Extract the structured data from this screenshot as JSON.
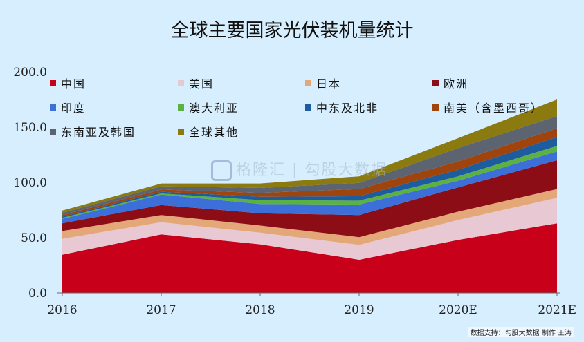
{
  "title": "全球主要国家光伏装机量统计",
  "watermark": "格隆汇 | 勾股大数据",
  "source": "数据支持：勾股大数据  制作 王涛",
  "chart_data": {
    "type": "area",
    "stacked": true,
    "title": "全球主要国家光伏装机量统计",
    "xlabel": "",
    "ylabel": "",
    "x": [
      "2016",
      "2017",
      "2018",
      "2019",
      "2020E",
      "2021E"
    ],
    "ylim": [
      0,
      200
    ],
    "yticks": [
      "0.0",
      "50.0",
      "100.0",
      "150.0",
      "200.0"
    ],
    "grid": false,
    "legend_position": "top-inside",
    "series": [
      {
        "name": "中国",
        "color": "#c8001a",
        "values": [
          34.5,
          53.0,
          44.0,
          30.0,
          48.0,
          63.0
        ]
      },
      {
        "name": "美国",
        "color": "#e8c8d2",
        "values": [
          14.5,
          11.0,
          10.5,
          13.5,
          18.0,
          23.0
        ]
      },
      {
        "name": "日本",
        "color": "#e4a878",
        "values": [
          7.0,
          6.5,
          6.5,
          7.0,
          7.5,
          8.0
        ]
      },
      {
        "name": "欧洲",
        "color": "#8c0d16",
        "values": [
          7.0,
          9.0,
          11.0,
          20.0,
          22.0,
          26.0
        ]
      },
      {
        "name": "印度",
        "color": "#3d6fd8",
        "values": [
          4.0,
          9.5,
          8.5,
          9.5,
          6.0,
          8.0
        ]
      },
      {
        "name": "澳大利亚",
        "color": "#5bb243",
        "values": [
          1.0,
          1.0,
          3.5,
          3.5,
          4.0,
          5.0
        ]
      },
      {
        "name": "中东及北非",
        "color": "#1d5c9e",
        "values": [
          1.0,
          1.5,
          3.0,
          4.0,
          6.0,
          8.0
        ]
      },
      {
        "name": "南美（含墨西哥）",
        "color": "#a0440e",
        "values": [
          1.5,
          2.0,
          3.5,
          6.5,
          7.5,
          8.0
        ]
      },
      {
        "name": "东南亚及韩国",
        "color": "#5b6470",
        "values": [
          2.0,
          3.0,
          4.5,
          5.5,
          12.0,
          11.0
        ]
      },
      {
        "name": "全球其他",
        "color": "#8a7a10",
        "values": [
          2.0,
          2.5,
          4.0,
          6.0,
          9.0,
          15.0
        ]
      }
    ]
  }
}
